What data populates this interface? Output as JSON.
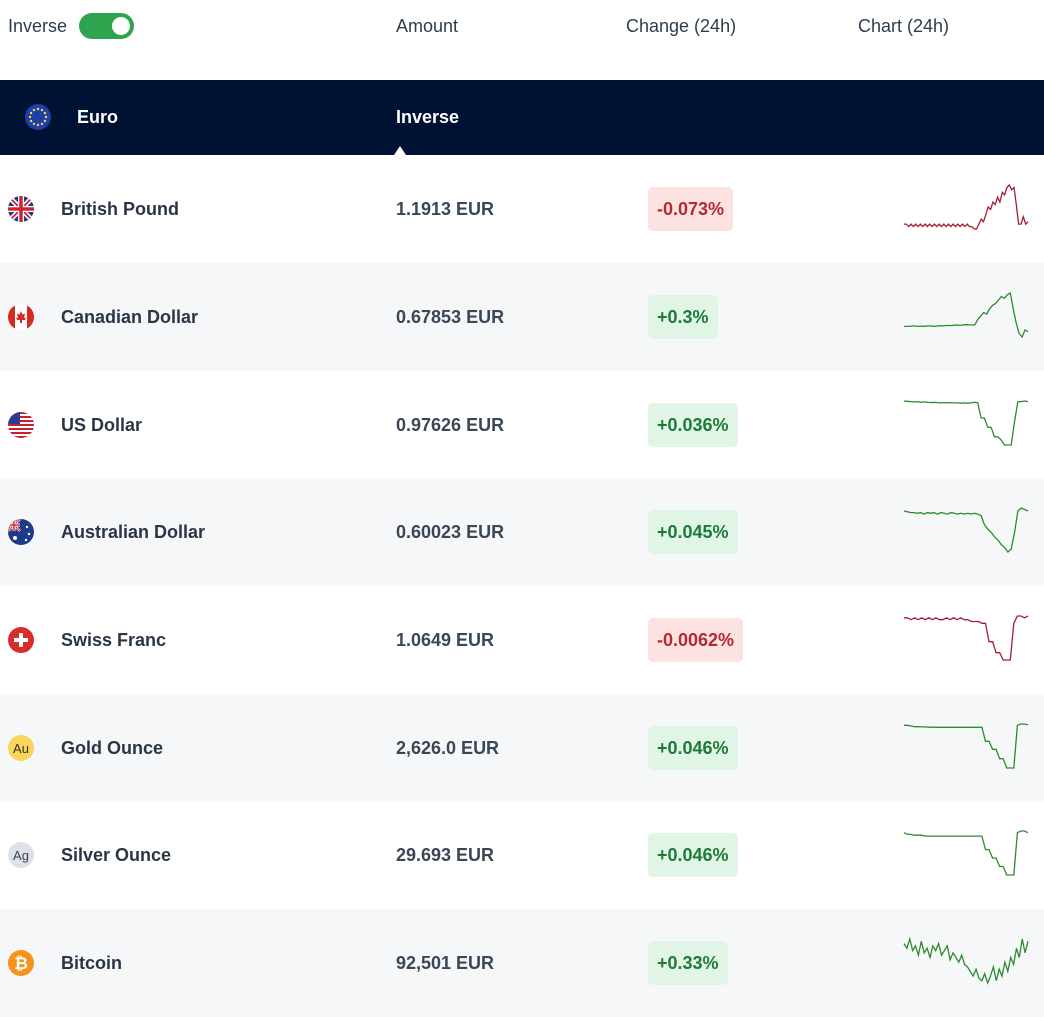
{
  "header": {
    "inverse_label": "Inverse",
    "inverse_on": true,
    "columns": {
      "amount": "Amount",
      "change": "Change (24h)",
      "chart": "Chart (24h)"
    }
  },
  "base": {
    "name": "Euro",
    "mode_label": "Inverse"
  },
  "colors": {
    "positive": "#2e8b2e",
    "negative": "#a51d33",
    "navy": "#001233",
    "toggle": "#2ea44f"
  },
  "rows": [
    {
      "name": "British Pound",
      "amount": "1.1913 EUR",
      "change": "-0.073%",
      "trend": "negative",
      "icon": "uk-flag-icon",
      "spark": [
        31,
        31,
        30,
        31,
        30,
        31,
        30,
        31,
        30,
        31,
        30,
        31,
        30,
        31,
        30,
        31,
        30,
        31,
        30,
        31,
        30,
        31,
        30,
        31,
        30,
        31,
        30,
        31,
        30,
        30,
        29,
        29,
        31,
        33,
        32,
        35,
        38,
        37,
        40,
        39,
        42,
        40,
        44,
        43,
        46,
        47,
        45,
        46,
        39,
        31,
        31,
        34,
        31,
        32
      ]
    },
    {
      "name": "Canadian Dollar",
      "amount": "0.67853 EUR",
      "change": "+0.3%",
      "trend": "positive",
      "icon": "canada-flag-icon",
      "spark": [
        82,
        82,
        82,
        82.3,
        82.2,
        82,
        82.2,
        82.1,
        82.3,
        82.3,
        82.1,
        82.2,
        82.4,
        82.3,
        82.5,
        82.6,
        82.5,
        82.7,
        82.8,
        82.6,
        82.9,
        83,
        82.9,
        82.8,
        83,
        86,
        88,
        90,
        89,
        92,
        94,
        95,
        97,
        99,
        98,
        100,
        101,
        92,
        84,
        78,
        76,
        80,
        79
      ]
    },
    {
      "name": "US Dollar",
      "amount": "0.97626 EUR",
      "change": "+0.036%",
      "trend": "positive",
      "icon": "us-flag-icon",
      "spark": [
        0.9792,
        0.97915,
        0.9791,
        0.97905,
        0.9791,
        0.979,
        0.97905,
        0.979,
        0.97895,
        0.979,
        0.97895,
        0.9789,
        0.97895,
        0.9789,
        0.97895,
        0.9789,
        0.9789,
        0.97885,
        0.9789,
        0.97885,
        0.9789,
        0.979,
        0.97895,
        0.9765,
        0.9765,
        0.975,
        0.975,
        0.9735,
        0.9735,
        0.973,
        0.9722,
        0.9722,
        0.9722,
        0.976,
        0.9791,
        0.9791,
        0.9792,
        0.9791
      ]
    },
    {
      "name": "Australian Dollar",
      "amount": "0.60023 EUR",
      "change": "+0.045%",
      "trend": "positive",
      "icon": "australia-flag-icon",
      "spark": [
        0.6012,
        0.60115,
        0.6011,
        0.6011,
        0.60105,
        0.6011,
        0.601,
        0.6011,
        0.60105,
        0.6011,
        0.601,
        0.6011,
        0.60105,
        0.601,
        0.6011,
        0.60105,
        0.601,
        0.60105,
        0.601,
        0.60105,
        0.601,
        0.60105,
        0.601,
        0.6009,
        0.6003,
        0.6,
        0.5998,
        0.5995,
        0.5993,
        0.599,
        0.5988,
        0.5985,
        0.5987,
        0.5998,
        0.6012,
        0.6014,
        0.6013,
        0.6012
      ]
    },
    {
      "name": "Swiss Franc",
      "amount": "1.0649 EUR",
      "change": "-0.0062%",
      "trend": "negative",
      "icon": "swiss-flag-icon",
      "spark": [
        1.0661,
        1.0661,
        1.066,
        1.0661,
        1.066,
        1.0661,
        1.066,
        1.0661,
        1.066,
        1.0661,
        1.066,
        1.066,
        1.0661,
        1.066,
        1.0661,
        1.066,
        1.0661,
        1.066,
        1.066,
        1.0659,
        1.0659,
        1.0659,
        1.0658,
        1.0658,
        1.0648,
        1.0648,
        1.0642,
        1.0642,
        1.0638,
        1.0638,
        1.0638,
        1.0658,
        1.0662,
        1.0662,
        1.0661,
        1.0662
      ]
    },
    {
      "name": "Gold Ounce",
      "amount": "2,626.0 EUR",
      "change": "+0.046%",
      "trend": "positive",
      "icon": "gold-au-icon",
      "spark": [
        2632,
        2632,
        2631.5,
        2631,
        2631,
        2630.8,
        2630.8,
        2630.6,
        2630.6,
        2630.5,
        2630.5,
        2630.5,
        2630.5,
        2630.5,
        2630.5,
        2630.5,
        2630.5,
        2630.5,
        2630.5,
        2630.5,
        2630.5,
        2630.5,
        2630.5,
        2620,
        2620,
        2614,
        2614,
        2607,
        2607,
        2600,
        2600,
        2600,
        2632,
        2633,
        2633,
        2632.5
      ]
    },
    {
      "name": "Silver Ounce",
      "amount": "29.693 EUR",
      "change": "+0.046%",
      "trend": "positive",
      "icon": "silver-ag-icon",
      "spark": [
        29.8,
        29.79,
        29.79,
        29.785,
        29.785,
        29.785,
        29.78,
        29.78,
        29.78,
        29.78,
        29.78,
        29.78,
        29.78,
        29.78,
        29.78,
        29.78,
        29.78,
        29.78,
        29.78,
        29.78,
        29.78,
        29.78,
        29.78,
        29.7,
        29.7,
        29.65,
        29.65,
        29.6,
        29.6,
        29.55,
        29.55,
        29.55,
        29.8,
        29.81,
        29.81,
        29.8
      ]
    },
    {
      "name": "Bitcoin",
      "amount": "92,501 EUR",
      "change": "+0.33%",
      "trend": "positive",
      "icon": "bitcoin-icon",
      "spark": [
        92400,
        92200,
        92600,
        92100,
        92300,
        91900,
        92500,
        92000,
        92200,
        91800,
        92300,
        92100,
        92400,
        91900,
        92100,
        92300,
        91700,
        92000,
        91800,
        91600,
        91900,
        91500,
        91400,
        91200,
        91000,
        91300,
        90900,
        90800,
        91100,
        90700,
        91000,
        91400,
        90800,
        91300,
        91000,
        91600,
        91200,
        91800,
        91500,
        92200,
        91800,
        92600,
        92000,
        92500
      ]
    }
  ]
}
